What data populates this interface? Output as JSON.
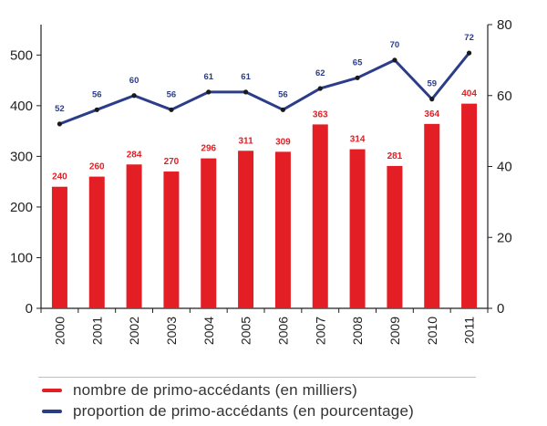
{
  "chart_data": {
    "type": "bar+line",
    "categories": [
      "2000",
      "2001",
      "2002",
      "2003",
      "2004",
      "2005",
      "2006",
      "2007",
      "2008",
      "2009",
      "2010",
      "2011"
    ],
    "series": [
      {
        "name": "nombre de primo-accédants (en milliers)",
        "type": "bar",
        "axis": "left",
        "color": "#e31e24",
        "values": [
          240,
          260,
          284,
          270,
          296,
          311,
          309,
          363,
          314,
          281,
          364,
          404
        ]
      },
      {
        "name": "proportion de primo-accédants (en pourcentage)",
        "type": "line",
        "axis": "right",
        "color": "#2b3d8a",
        "values": [
          52,
          56,
          60,
          56,
          61,
          61,
          56,
          62,
          65,
          70,
          59,
          72
        ]
      }
    ],
    "y_left": {
      "ylim": [
        0,
        560
      ],
      "ticks": [
        0,
        100,
        200,
        300,
        400,
        500
      ]
    },
    "y_right": {
      "ylim": [
        0,
        80
      ],
      "ticks": [
        0,
        20,
        40,
        60,
        80
      ]
    },
    "grid": false,
    "legend_position": "bottom"
  },
  "legend": {
    "bar_label": "nombre de primo-accédants (en milliers)",
    "line_label": "proportion de primo-accédants (en pourcentage)"
  }
}
